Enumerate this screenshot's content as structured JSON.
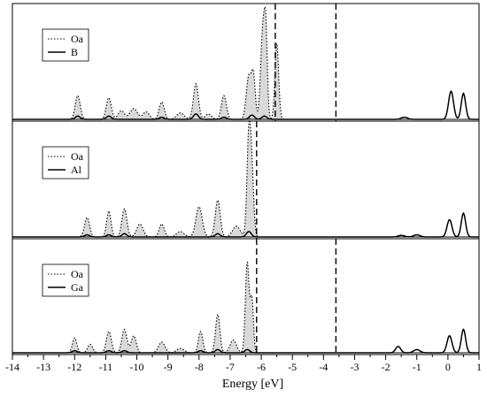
{
  "chart_data": {
    "type": "area",
    "xlabel": "Energy [eV]",
    "ylabel": "",
    "xlim": [
      -14,
      1
    ],
    "xticks": [
      -14,
      -13,
      -12,
      -11,
      -10,
      -9,
      -8,
      -7,
      -6,
      -5,
      -4,
      -3,
      -2,
      -1,
      0,
      1
    ],
    "xtick_labels": [
      "-14",
      "-13",
      "-12",
      "-11",
      "-10",
      "-9",
      "-8",
      "-7",
      "-6",
      "-5",
      "-4",
      "-3",
      "-2",
      "-1",
      "0",
      "1"
    ],
    "grid": false,
    "panels": [
      {
        "legend_placement": "top-left",
        "marker_lines_x": [
          -5.55,
          -3.6
        ],
        "series": [
          {
            "name": "Oa",
            "style": "dotted",
            "fill": "#d9d9d9",
            "peaks": [
              [
                -11.9,
                0.22,
                0.08
              ],
              [
                -10.9,
                0.2,
                0.08
              ],
              [
                -10.5,
                0.08,
                0.1
              ],
              [
                -10.1,
                0.1,
                0.12
              ],
              [
                -9.7,
                0.07,
                0.1
              ],
              [
                -9.2,
                0.16,
                0.08
              ],
              [
                -8.6,
                0.06,
                0.12
              ],
              [
                -8.1,
                0.33,
                0.08
              ],
              [
                -7.7,
                0.05,
                0.1
              ],
              [
                -7.2,
                0.22,
                0.08
              ],
              [
                -6.4,
                0.4,
                0.08
              ],
              [
                -6.25,
                0.38,
                0.06
              ],
              [
                -5.95,
                0.82,
                0.07
              ],
              [
                -5.85,
                0.65,
                0.05
              ],
              [
                -5.5,
                0.7,
                0.06
              ]
            ]
          },
          {
            "name": "B",
            "style": "solid",
            "peaks": [
              [
                -11.9,
                0.03,
                0.08
              ],
              [
                -10.9,
                0.03,
                0.08
              ],
              [
                -9.2,
                0.02,
                0.08
              ],
              [
                -8.1,
                0.05,
                0.08
              ],
              [
                -7.2,
                0.02,
                0.08
              ],
              [
                -6.3,
                0.04,
                0.08
              ],
              [
                -5.9,
                0.03,
                0.08
              ],
              [
                -1.4,
                0.02,
                0.1
              ],
              [
                0.1,
                0.26,
                0.08
              ],
              [
                0.5,
                0.24,
                0.07
              ]
            ]
          }
        ]
      },
      {
        "legend_placement": "top-left",
        "marker_lines_x": [
          -6.15
        ],
        "series": [
          {
            "name": "Oa",
            "style": "dotted",
            "fill": "#d9d9d9",
            "peaks": [
              [
                -11.6,
                0.18,
                0.08
              ],
              [
                -10.9,
                0.24,
                0.07
              ],
              [
                -10.4,
                0.26,
                0.08
              ],
              [
                -9.9,
                0.12,
                0.1
              ],
              [
                -9.2,
                0.12,
                0.08
              ],
              [
                -8.6,
                0.05,
                0.12
              ],
              [
                -8.0,
                0.28,
                0.1
              ],
              [
                -7.4,
                0.34,
                0.08
              ],
              [
                -6.8,
                0.1,
                0.12
              ],
              [
                -6.4,
                0.92,
                0.06
              ],
              [
                -6.3,
                0.55,
                0.06
              ]
            ]
          },
          {
            "name": "Al",
            "style": "solid",
            "peaks": [
              [
                -11.6,
                0.02,
                0.08
              ],
              [
                -10.9,
                0.02,
                0.08
              ],
              [
                -10.4,
                0.03,
                0.08
              ],
              [
                -7.4,
                0.03,
                0.08
              ],
              [
                -6.4,
                0.05,
                0.08
              ],
              [
                -1.5,
                0.015,
                0.1
              ],
              [
                -1.0,
                0.02,
                0.1
              ],
              [
                0.05,
                0.16,
                0.08
              ],
              [
                0.5,
                0.22,
                0.07
              ]
            ]
          }
        ]
      },
      {
        "legend_placement": "top-left",
        "marker_lines_x": [
          -6.15,
          -3.6
        ],
        "series": [
          {
            "name": "Oa",
            "style": "dotted",
            "fill": "#d9d9d9",
            "peaks": [
              [
                -12.0,
                0.14,
                0.07
              ],
              [
                -11.5,
                0.08,
                0.08
              ],
              [
                -10.9,
                0.2,
                0.08
              ],
              [
                -10.4,
                0.22,
                0.08
              ],
              [
                -10.1,
                0.16,
                0.08
              ],
              [
                -9.2,
                0.1,
                0.1
              ],
              [
                -8.6,
                0.04,
                0.12
              ],
              [
                -7.95,
                0.2,
                0.07
              ],
              [
                -7.4,
                0.36,
                0.07
              ],
              [
                -6.9,
                0.12,
                0.1
              ],
              [
                -6.45,
                0.85,
                0.06
              ],
              [
                -6.3,
                0.5,
                0.05
              ]
            ]
          },
          {
            "name": "Ga",
            "style": "solid",
            "peaks": [
              [
                -12.0,
                0.02,
                0.08
              ],
              [
                -10.9,
                0.02,
                0.08
              ],
              [
                -10.4,
                0.02,
                0.08
              ],
              [
                -7.95,
                0.02,
                0.08
              ],
              [
                -7.4,
                0.03,
                0.08
              ],
              [
                -6.45,
                0.03,
                0.08
              ],
              [
                -1.6,
                0.06,
                0.08
              ],
              [
                -1.0,
                0.03,
                0.1
              ],
              [
                0.05,
                0.16,
                0.08
              ],
              [
                0.5,
                0.22,
                0.07
              ]
            ]
          }
        ]
      }
    ]
  }
}
